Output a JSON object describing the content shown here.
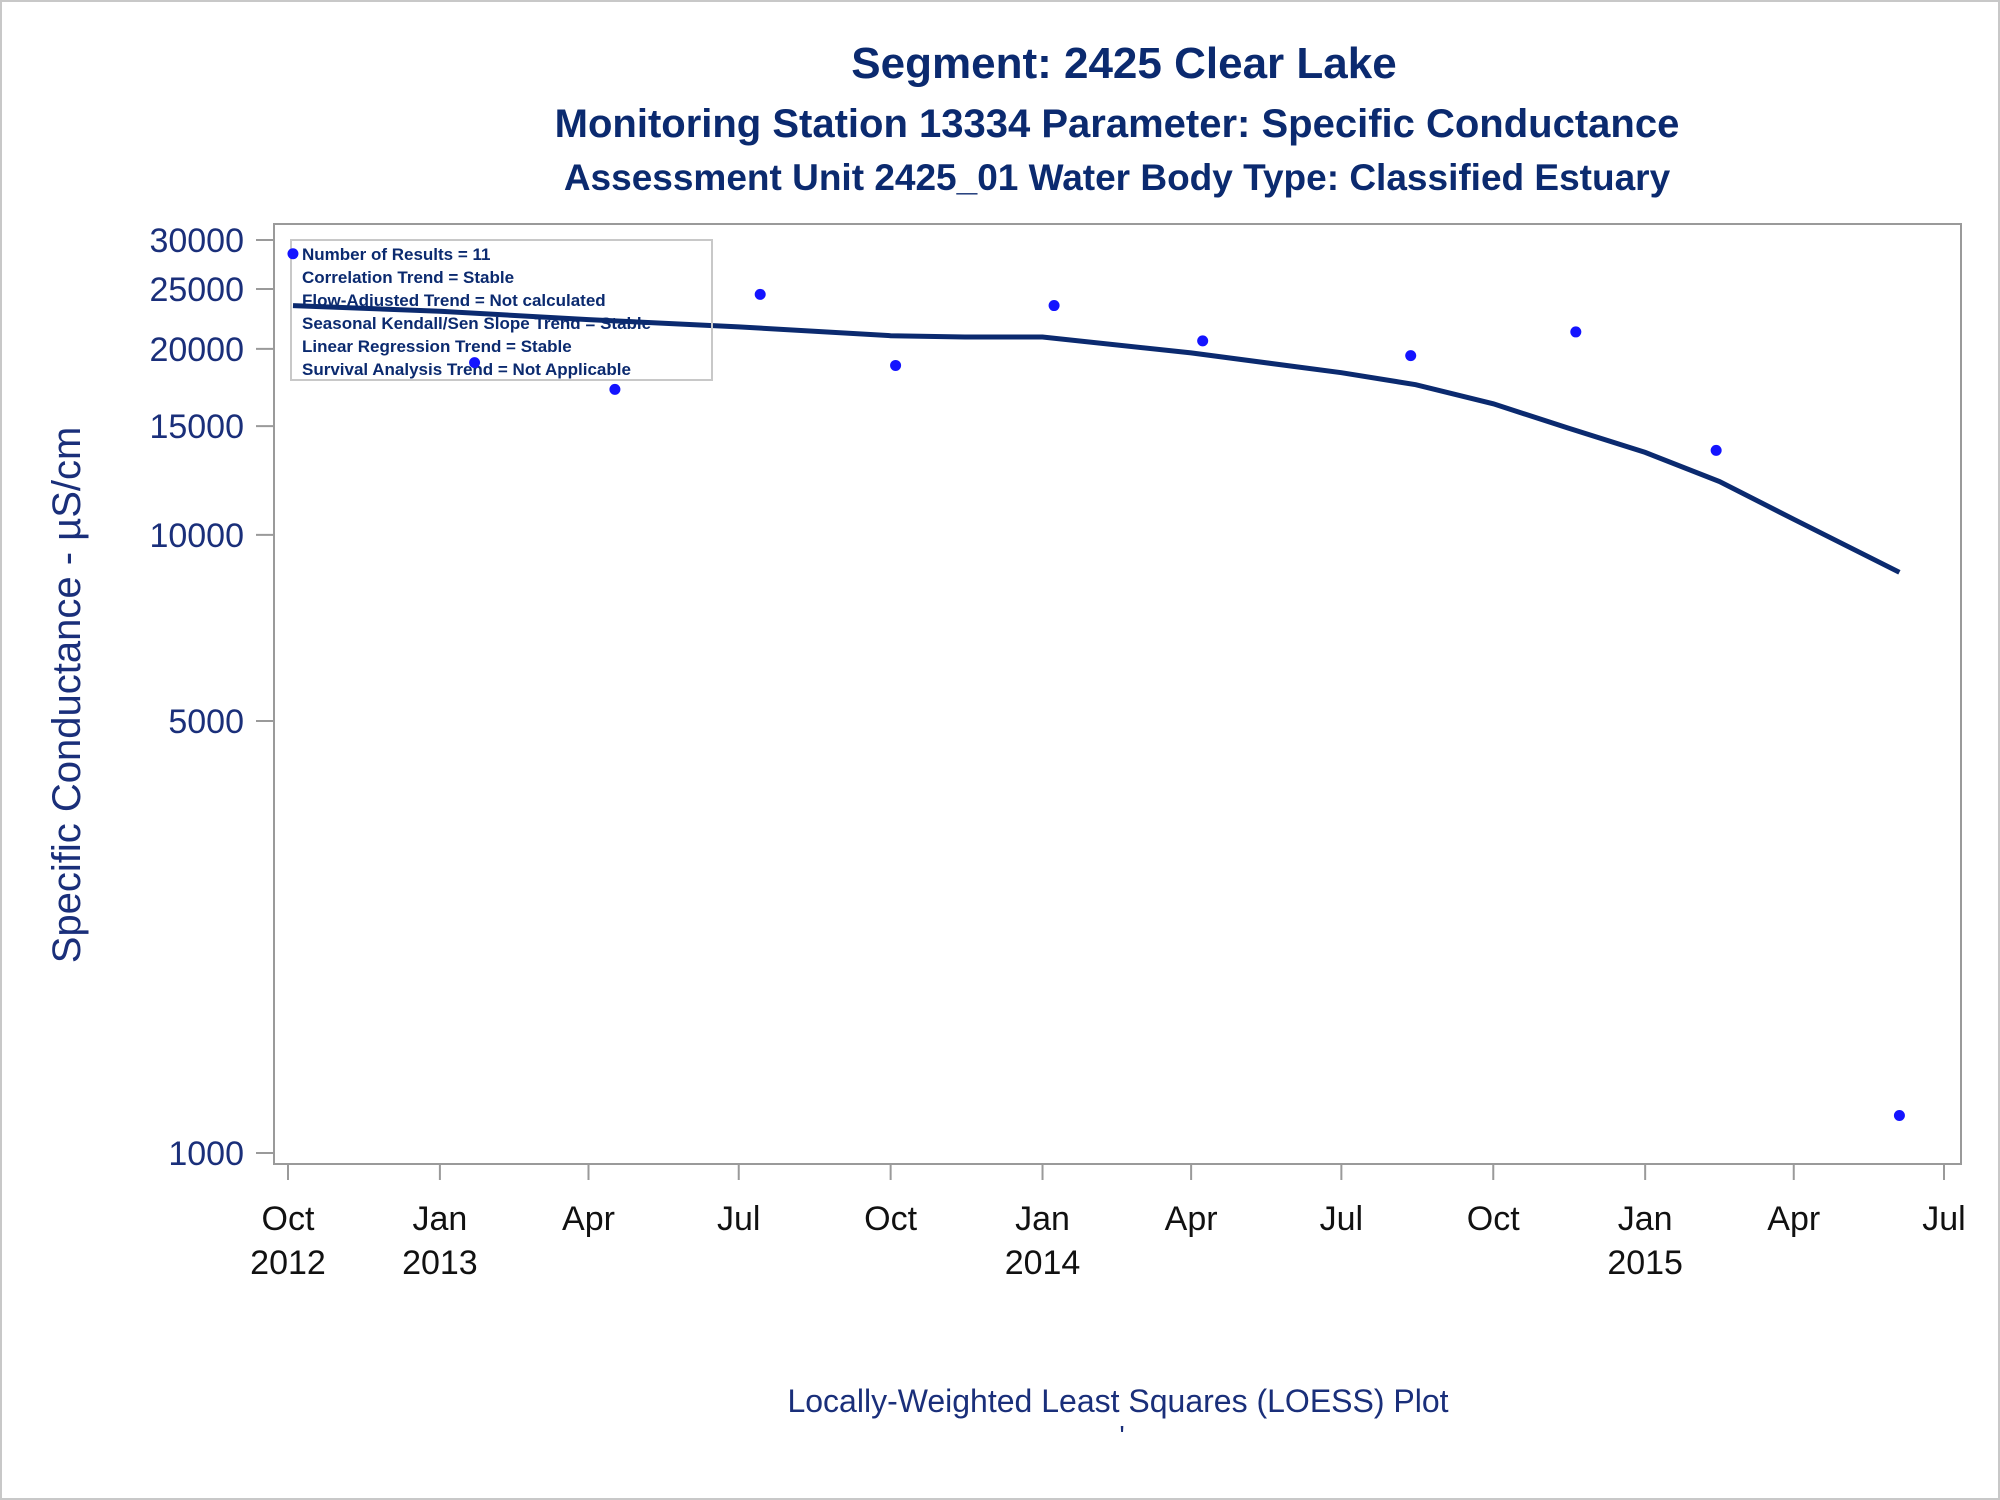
{
  "colors": {
    "title": "#0b2a6f",
    "axis_text": "#1a2f7a",
    "x_tick_text": "#111111",
    "frame": "#9a9a9a",
    "outer_frame": "#c8c8c8",
    "point": "#1414ff",
    "loess_line": "#0b2a6f",
    "background": "#ffffff"
  },
  "titles": {
    "line1": "Segment: 2425  Clear Lake",
    "line2": "Monitoring Station 13334 Parameter: Specific Conductance",
    "line3": "Assessment Unit 2425_01   Water Body Type: Classified Estuary"
  },
  "stats_box": {
    "lines": [
      "Number of Results = 11",
      "Correlation Trend = Stable",
      "Flow-Adjusted Trend = Not calculated",
      "Seasonal Kendall/Sen Slope Trend = Stable",
      "Linear Regression Trend = Stable",
      "Survival Analysis Trend = Not Applicable"
    ]
  },
  "footer": {
    "caption": "Locally-Weighted Least Squares (LOESS) Plot",
    "mark": "'"
  },
  "chart_data": {
    "type": "scatter",
    "title": "Segment: 2425  Clear Lake",
    "subtitle": "Monitoring Station 13334 Parameter: Specific Conductance",
    "xlabel": "",
    "ylabel": "Specific Conductance -  µS/cm",
    "y_scale": "log",
    "ylim": [
      950,
      30500
    ],
    "xlim": [
      "2012-10-01",
      "2015-07-01"
    ],
    "grid": false,
    "y_ticks": [
      {
        "value": 30000,
        "label": "30000"
      },
      {
        "value": 25000,
        "label": "25000"
      },
      {
        "value": 20000,
        "label": "20000"
      },
      {
        "value": 15000,
        "label": "15000"
      },
      {
        "value": 10000,
        "label": "10000"
      },
      {
        "value": 5000,
        "label": "5000"
      },
      {
        "value": 1000,
        "label": "1000"
      }
    ],
    "x_ticks": [
      {
        "date": "2012-10-01",
        "month": "Oct",
        "year": "2012"
      },
      {
        "date": "2013-01-01",
        "month": "Jan",
        "year": "2013"
      },
      {
        "date": "2013-04-01",
        "month": "Apr",
        "year": ""
      },
      {
        "date": "2013-07-01",
        "month": "Jul",
        "year": ""
      },
      {
        "date": "2013-10-01",
        "month": "Oct",
        "year": ""
      },
      {
        "date": "2014-01-01",
        "month": "Jan",
        "year": "2014"
      },
      {
        "date": "2014-04-01",
        "month": "Apr",
        "year": ""
      },
      {
        "date": "2014-07-01",
        "month": "Jul",
        "year": ""
      },
      {
        "date": "2014-10-01",
        "month": "Oct",
        "year": ""
      },
      {
        "date": "2015-01-01",
        "month": "Jan",
        "year": "2015"
      },
      {
        "date": "2015-04-01",
        "month": "Apr",
        "year": ""
      },
      {
        "date": "2015-07-01",
        "month": "Jul",
        "year": ""
      }
    ],
    "series": [
      {
        "type": "scatter",
        "points": [
          {
            "x": "2012-10-04",
            "y": 28500
          },
          {
            "x": "2013-01-22",
            "y": 19000
          },
          {
            "x": "2013-04-17",
            "y": 17200
          },
          {
            "x": "2013-07-14",
            "y": 24500
          },
          {
            "x": "2013-10-04",
            "y": 18800
          },
          {
            "x": "2014-01-08",
            "y": 23500
          },
          {
            "x": "2014-04-08",
            "y": 20600
          },
          {
            "x": "2014-08-12",
            "y": 19500
          },
          {
            "x": "2014-11-20",
            "y": 21300
          },
          {
            "x": "2015-02-13",
            "y": 13700
          },
          {
            "x": "2015-06-04",
            "y": 1150
          }
        ]
      },
      {
        "type": "line",
        "points": [
          {
            "x": "2012-10-04",
            "y": 23500
          },
          {
            "x": "2013-01-01",
            "y": 23000
          },
          {
            "x": "2013-04-01",
            "y": 22300
          },
          {
            "x": "2013-07-01",
            "y": 21700
          },
          {
            "x": "2013-10-01",
            "y": 21000
          },
          {
            "x": "2013-11-15",
            "y": 20900
          },
          {
            "x": "2014-01-01",
            "y": 20900
          },
          {
            "x": "2014-04-01",
            "y": 19700
          },
          {
            "x": "2014-07-01",
            "y": 18300
          },
          {
            "x": "2014-08-15",
            "y": 17500
          },
          {
            "x": "2014-10-01",
            "y": 16300
          },
          {
            "x": "2014-11-15",
            "y": 14900
          },
          {
            "x": "2015-01-01",
            "y": 13600
          },
          {
            "x": "2015-02-15",
            "y": 12200
          },
          {
            "x": "2015-04-01",
            "y": 10600
          },
          {
            "x": "2015-06-04",
            "y": 8700
          }
        ]
      }
    ]
  }
}
